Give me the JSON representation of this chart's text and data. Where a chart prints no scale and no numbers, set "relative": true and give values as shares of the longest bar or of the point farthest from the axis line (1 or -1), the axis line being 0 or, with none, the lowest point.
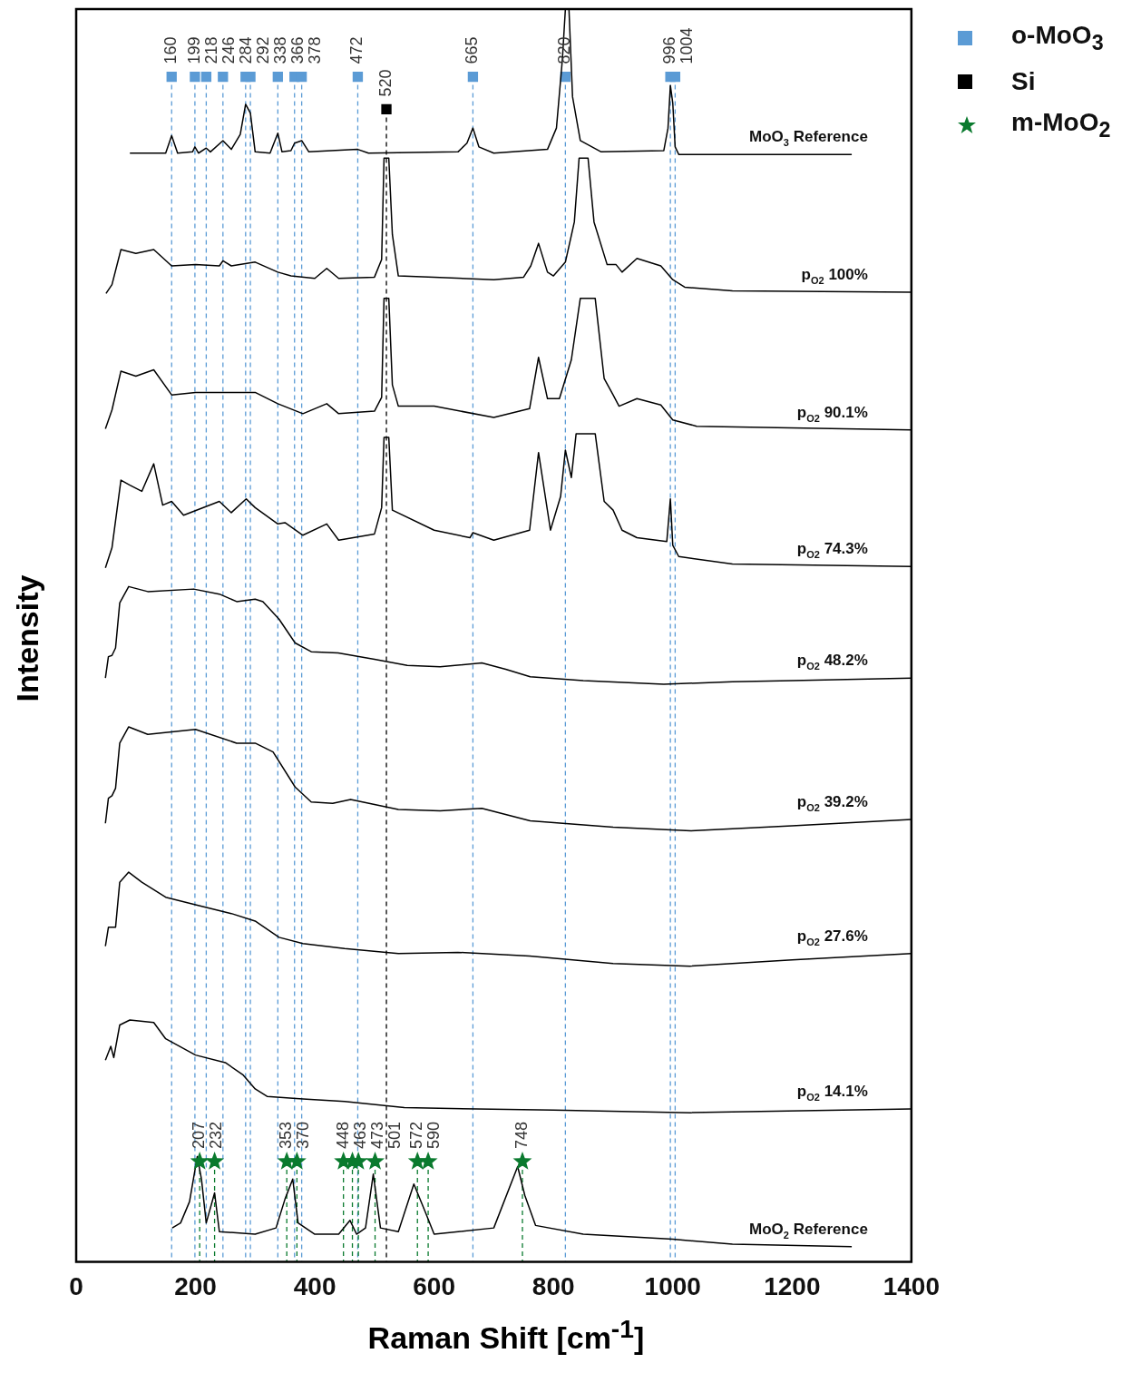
{
  "chart_data": {
    "type": "line",
    "relative": true,
    "xlabel": "Raman Shift [cm$^{-1}$]",
    "ylabel": "Intensity",
    "xlim": [
      0,
      1400
    ],
    "xticks": [
      0,
      200,
      400,
      600,
      800,
      1000,
      1200,
      1400
    ],
    "legend": "top right",
    "series": [
      {
        "name": "MoO$_{3}$ Reference",
        "color": "#000000",
        "x": [
          90,
          150,
          160,
          170,
          195,
          199,
          205,
          218,
          225,
          246,
          260,
          275,
          284,
          292,
          300,
          325,
          338,
          345,
          360,
          366,
          378,
          390,
          472,
          490,
          640,
          655,
          665,
          675,
          700,
          790,
          805,
          815,
          820,
          826,
          832,
          845,
          880,
          985,
          992,
          996,
          1000,
          1004,
          1010,
          1300
        ],
        "values": [
          0.885,
          0.885,
          0.899,
          0.885,
          0.886,
          0.89,
          0.885,
          0.889,
          0.886,
          0.895,
          0.888,
          0.9,
          0.924,
          0.917,
          0.886,
          0.885,
          0.901,
          0.886,
          0.887,
          0.893,
          0.895,
          0.886,
          0.888,
          0.885,
          0.886,
          0.893,
          0.905,
          0.89,
          0.885,
          0.888,
          0.905,
          0.96,
          1.0,
          1.0,
          0.93,
          0.895,
          0.886,
          0.887,
          0.905,
          0.939,
          0.925,
          0.89,
          0.884,
          0.884
        ]
      },
      {
        "name": "p$_{O2}$ 100%",
        "color": "#000000",
        "x": [
          50,
          60,
          75,
          100,
          130,
          160,
          200,
          240,
          246,
          260,
          300,
          338,
          360,
          400,
          420,
          440,
          500,
          512,
          516,
          520,
          524,
          530,
          540,
          600,
          700,
          750,
          762,
          775,
          790,
          800,
          820,
          835,
          843,
          858,
          868,
          890,
          905,
          915,
          940,
          980,
          1000,
          1020,
          1100,
          1400
        ],
        "values": [
          0.773,
          0.78,
          0.808,
          0.805,
          0.808,
          0.795,
          0.796,
          0.795,
          0.799,
          0.795,
          0.798,
          0.79,
          0.787,
          0.785,
          0.793,
          0.785,
          0.786,
          0.8,
          0.881,
          0.881,
          0.881,
          0.82,
          0.787,
          0.786,
          0.784,
          0.786,
          0.795,
          0.813,
          0.79,
          0.787,
          0.798,
          0.83,
          0.881,
          0.881,
          0.83,
          0.796,
          0.796,
          0.79,
          0.801,
          0.795,
          0.784,
          0.778,
          0.775,
          0.774
        ]
      },
      {
        "name": "p$_{O2}$ 90.1%",
        "color": "#000000",
        "x": [
          49,
          60,
          75,
          100,
          130,
          160,
          200,
          300,
          338,
          380,
          420,
          440,
          500,
          512,
          516,
          520,
          524,
          530,
          540,
          600,
          700,
          760,
          775,
          790,
          810,
          830,
          845,
          870,
          885,
          900,
          910,
          940,
          980,
          1000,
          1040,
          1400
        ],
        "values": [
          0.665,
          0.68,
          0.711,
          0.707,
          0.712,
          0.692,
          0.694,
          0.694,
          0.685,
          0.677,
          0.685,
          0.677,
          0.679,
          0.69,
          0.769,
          0.769,
          0.769,
          0.7,
          0.683,
          0.683,
          0.674,
          0.681,
          0.722,
          0.689,
          0.689,
          0.72,
          0.769,
          0.769,
          0.705,
          0.692,
          0.683,
          0.689,
          0.684,
          0.672,
          0.667,
          0.664
        ]
      },
      {
        "name": "p$_{O2}$ 74.3%",
        "color": "#000000",
        "x": [
          49,
          60,
          75,
          90,
          110,
          130,
          145,
          160,
          180,
          240,
          260,
          285,
          300,
          338,
          350,
          380,
          420,
          440,
          500,
          512,
          516,
          520,
          524,
          530,
          600,
          660,
          665,
          700,
          760,
          775,
          795,
          812,
          820,
          830,
          838,
          845,
          870,
          885,
          900,
          915,
          940,
          990,
          996,
          1000,
          1010,
          1100,
          1400
        ],
        "values": [
          0.554,
          0.57,
          0.624,
          0.62,
          0.615,
          0.637,
          0.604,
          0.607,
          0.596,
          0.607,
          0.598,
          0.609,
          0.602,
          0.589,
          0.59,
          0.58,
          0.589,
          0.576,
          0.581,
          0.602,
          0.658,
          0.658,
          0.658,
          0.6,
          0.584,
          0.578,
          0.582,
          0.576,
          0.584,
          0.646,
          0.584,
          0.611,
          0.648,
          0.626,
          0.661,
          0.661,
          0.661,
          0.607,
          0.6,
          0.584,
          0.578,
          0.575,
          0.609,
          0.572,
          0.563,
          0.557,
          0.555
        ]
      },
      {
        "name": "p$_{O2}$ 48.2%",
        "color": "#000000",
        "x": [
          49,
          54,
          60,
          66,
          73,
          88,
          120,
          197,
          240,
          269,
          300,
          313,
          340,
          367,
          394,
          439,
          500,
          555,
          610,
          680,
          720,
          761,
          850,
          985,
          1100,
          1200,
          1400
        ],
        "values": [
          0.466,
          0.483,
          0.484,
          0.49,
          0.526,
          0.539,
          0.535,
          0.537,
          0.533,
          0.527,
          0.529,
          0.527,
          0.513,
          0.494,
          0.487,
          0.486,
          0.481,
          0.476,
          0.475,
          0.478,
          0.473,
          0.467,
          0.464,
          0.461,
          0.463,
          0.464,
          0.466
        ]
      },
      {
        "name": "p$_{O2}$ 39.2%",
        "color": "#000000",
        "x": [
          49,
          54,
          60,
          66,
          73,
          88,
          120,
          200,
          269,
          300,
          330,
          367,
          394,
          430,
          460,
          540,
          610,
          680,
          761,
          900,
          1030,
          1200,
          1400
        ],
        "values": [
          0.35,
          0.37,
          0.372,
          0.378,
          0.414,
          0.427,
          0.421,
          0.425,
          0.414,
          0.414,
          0.407,
          0.379,
          0.367,
          0.366,
          0.369,
          0.361,
          0.36,
          0.362,
          0.352,
          0.347,
          0.344,
          0.348,
          0.353
        ]
      },
      {
        "name": "p$_{O2}$ 27.6%",
        "color": "#000000",
        "x": [
          49,
          54,
          66,
          73,
          88,
          110,
          150,
          200,
          260,
          300,
          340,
          380,
          450,
          540,
          640,
          760,
          900,
          1030,
          1200,
          1400
        ],
        "values": [
          0.252,
          0.267,
          0.267,
          0.303,
          0.311,
          0.303,
          0.291,
          0.285,
          0.278,
          0.272,
          0.259,
          0.254,
          0.25,
          0.246,
          0.247,
          0.244,
          0.238,
          0.236,
          0.241,
          0.246
        ]
      },
      {
        "name": "p$_{O2}$ 14.1%",
        "color": "#000000",
        "x": [
          49,
          58,
          63,
          73,
          90,
          130,
          150,
          200,
          250,
          280,
          300,
          320,
          380,
          450,
          550,
          800,
          1030,
          1400
        ],
        "values": [
          0.161,
          0.172,
          0.163,
          0.189,
          0.193,
          0.191,
          0.178,
          0.165,
          0.159,
          0.149,
          0.138,
          0.132,
          0.13,
          0.128,
          0.123,
          0.121,
          0.119,
          0.122
        ]
      },
      {
        "name": "MoO$_{2}$ Reference",
        "color": "#000000",
        "x": [
          161,
          175,
          190,
          203,
          210,
          218,
          232,
          240,
          300,
          335,
          350,
          363,
          372,
          400,
          440,
          459,
          470,
          485,
          498,
          510,
          540,
          566,
          585,
          600,
          700,
          740,
          752,
          770,
          850,
          1000,
          1100,
          1300
        ],
        "values": [
          0.027,
          0.031,
          0.048,
          0.084,
          0.066,
          0.031,
          0.055,
          0.024,
          0.022,
          0.027,
          0.05,
          0.066,
          0.031,
          0.022,
          0.022,
          0.033,
          0.022,
          0.027,
          0.07,
          0.027,
          0.024,
          0.062,
          0.04,
          0.022,
          0.027,
          0.076,
          0.053,
          0.029,
          0.022,
          0.018,
          0.014,
          0.012
        ]
      },
      {
        "type": "scatter",
        "name": "o-MoO$_{3}$",
        "color": "#5b9bd5",
        "marker": "square",
        "x": [
          160,
          199,
          218,
          246,
          284,
          292,
          338,
          366,
          378,
          472,
          665,
          820,
          996,
          1004
        ],
        "values": [
          0.946,
          0.946,
          0.946,
          0.946,
          0.946,
          0.946,
          0.946,
          0.946,
          0.946,
          0.946,
          0.946,
          0.946,
          0.946,
          0.946
        ]
      },
      {
        "type": "scatter",
        "name": "Si",
        "color": "#000000",
        "marker": "square",
        "x": [
          520
        ],
        "values": [
          0.92
        ]
      },
      {
        "type": "scatter",
        "name": "m-MoO$_{2}$",
        "color": "#0a7a2e",
        "marker": "star",
        "x": [
          207,
          232,
          353,
          370,
          448,
          463,
          473,
          501,
          572,
          590,
          748
        ],
        "values": [
          0.08,
          0.08,
          0.08,
          0.08,
          0.08,
          0.08,
          0.08,
          0.08,
          0.08,
          0.08,
          0.08
        ]
      }
    ],
    "ref_lines": [
      {
        "axis": "x",
        "value": 160,
        "label": "160",
        "color": "#5b9bd5",
        "line_style": "dashed"
      },
      {
        "axis": "x",
        "value": 199,
        "label": "199",
        "color": "#5b9bd5",
        "line_style": "dashed"
      },
      {
        "axis": "x",
        "value": 218,
        "label": "218",
        "color": "#5b9bd5",
        "line_style": "dashed"
      },
      {
        "axis": "x",
        "value": 246,
        "label": "246",
        "color": "#5b9bd5",
        "line_style": "dashed"
      },
      {
        "axis": "x",
        "value": 284,
        "label": "284",
        "color": "#5b9bd5",
        "line_style": "dashed"
      },
      {
        "axis": "x",
        "value": 292,
        "label": "292",
        "color": "#5b9bd5",
        "line_style": "dashed"
      },
      {
        "axis": "x",
        "value": 338,
        "label": "338",
        "color": "#5b9bd5",
        "line_style": "dashed"
      },
      {
        "axis": "x",
        "value": 366,
        "label": "366",
        "color": "#5b9bd5",
        "line_style": "dashed"
      },
      {
        "axis": "x",
        "value": 378,
        "label": "378",
        "color": "#5b9bd5",
        "line_style": "dashed"
      },
      {
        "axis": "x",
        "value": 472,
        "label": "472",
        "color": "#5b9bd5",
        "line_style": "dashed"
      },
      {
        "axis": "x",
        "value": 665,
        "label": "665",
        "color": "#5b9bd5",
        "line_style": "dashed"
      },
      {
        "axis": "x",
        "value": 820,
        "label": "820",
        "color": "#5b9bd5",
        "line_style": "dashed"
      },
      {
        "axis": "x",
        "value": 996,
        "label": "996",
        "color": "#5b9bd5",
        "line_style": "dashed"
      },
      {
        "axis": "x",
        "value": 1004,
        "label": "1004",
        "color": "#5b9bd5",
        "line_style": "dashed"
      },
      {
        "axis": "x",
        "value": 520,
        "label": "520",
        "color": "#000000",
        "line_style": "dashed"
      },
      {
        "axis": "x",
        "value": 207,
        "label": "207",
        "color": "#0a7a2e",
        "line_style": "dashed"
      },
      {
        "axis": "x",
        "value": 232,
        "label": "232",
        "color": "#0a7a2e",
        "line_style": "dashed"
      },
      {
        "axis": "x",
        "value": 353,
        "label": "353",
        "color": "#0a7a2e",
        "line_style": "dashed"
      },
      {
        "axis": "x",
        "value": 370,
        "label": "370",
        "color": "#0a7a2e",
        "line_style": "dashed"
      },
      {
        "axis": "x",
        "value": 448,
        "label": "448",
        "color": "#0a7a2e",
        "line_style": "dashed"
      },
      {
        "axis": "x",
        "value": 463,
        "label": "463",
        "color": "#0a7a2e",
        "line_style": "dashed"
      },
      {
        "axis": "x",
        "value": 473,
        "label": "473",
        "color": "#0a7a2e",
        "line_style": "dashed"
      },
      {
        "axis": "x",
        "value": 501,
        "label": "501",
        "color": "#0a7a2e",
        "line_style": "dashed"
      },
      {
        "axis": "x",
        "value": 572,
        "label": "572",
        "color": "#0a7a2e",
        "line_style": "dashed"
      },
      {
        "axis": "x",
        "value": 590,
        "label": "590",
        "color": "#0a7a2e",
        "line_style": "dashed"
      },
      {
        "axis": "x",
        "value": 748,
        "label": "748",
        "color": "#0a7a2e",
        "line_style": "dashed"
      }
    ]
  }
}
